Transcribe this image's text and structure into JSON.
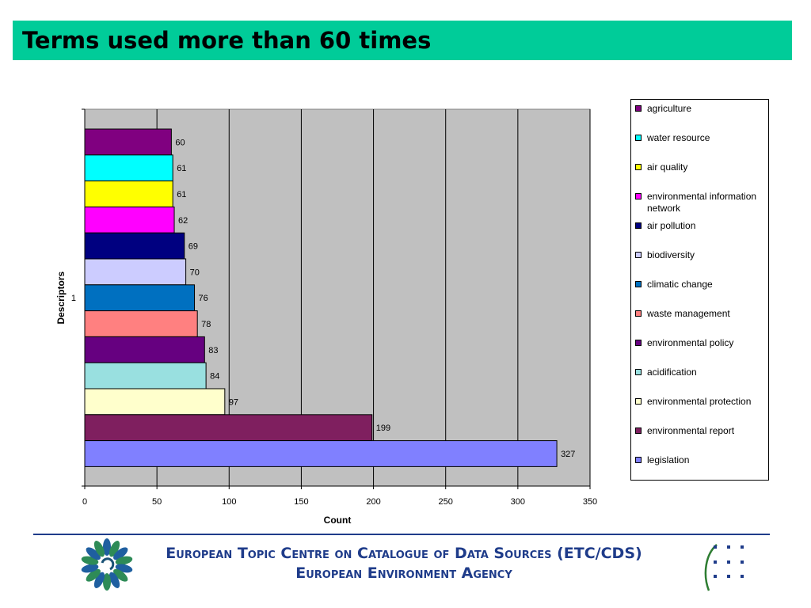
{
  "slide": {
    "title": "Terms used more than 60 times",
    "footer_line1": "European Topic Centre on Catalogue of Data Sources (ETC/CDS)",
    "footer_line2": "European Environment Agency",
    "left_logo_icon": "eea-flower-logo-icon",
    "right_logo_icon": "etc-cds-dots-logo-icon"
  },
  "chart_data": {
    "type": "bar",
    "orientation": "horizontal",
    "title": "",
    "xlabel": "Count",
    "ylabel": "Descriptors",
    "category_axis_label": "1",
    "xlim": [
      0,
      350
    ],
    "x_ticks": [
      0,
      50,
      100,
      150,
      200,
      250,
      300,
      350
    ],
    "grid": "vertical",
    "legend_position": "right",
    "plot_background": "#c0c0c0",
    "series": [
      {
        "name": "agriculture",
        "value": 60,
        "color": "#800080"
      },
      {
        "name": "water resource",
        "value": 61,
        "color": "#00ffff"
      },
      {
        "name": "air quality",
        "value": 61,
        "color": "#ffff00"
      },
      {
        "name": "environmental information network",
        "value": 62,
        "color": "#ff00ff"
      },
      {
        "name": "air pollution",
        "value": 69,
        "color": "#000080"
      },
      {
        "name": "biodiversity",
        "value": 70,
        "color": "#ccccff"
      },
      {
        "name": "climatic change",
        "value": 76,
        "color": "#0070c0"
      },
      {
        "name": "waste management",
        "value": 78,
        "color": "#ff8080"
      },
      {
        "name": "environmental policy",
        "value": 83,
        "color": "#660080"
      },
      {
        "name": "acidification",
        "value": 84,
        "color": "#99e0e0"
      },
      {
        "name": "environmental protection",
        "value": 97,
        "color": "#ffffcc"
      },
      {
        "name": "environmental report",
        "value": 199,
        "color": "#7f1f5f"
      },
      {
        "name": "legislation",
        "value": 327,
        "color": "#8080ff"
      }
    ]
  }
}
